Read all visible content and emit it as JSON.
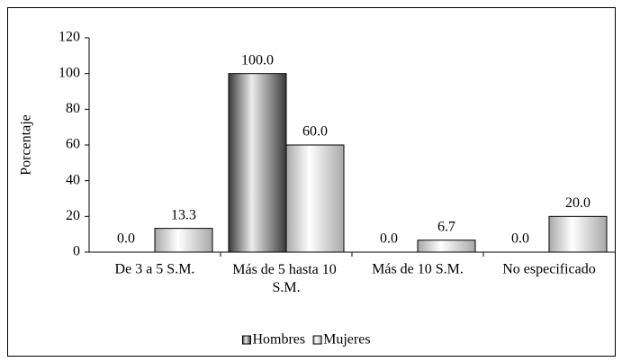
{
  "chart_data": {
    "type": "bar",
    "y_label": "Porcentaje",
    "categories": [
      "De 3 a 5 S.M.",
      "Más de 5 hasta 10 S.M.",
      "Más de 10 S.M.",
      "No especificado"
    ],
    "series": [
      {
        "name": "Hombres",
        "color": "#6e6e6e",
        "values": [
          0,
          100,
          0,
          0
        ],
        "value_labels": [
          "0.0",
          "100.0",
          "0.0",
          "0.0"
        ]
      },
      {
        "name": "Mujeres",
        "color": "#d4d4d4",
        "values": [
          13.3,
          60,
          6.7,
          20
        ],
        "value_labels": [
          "13.3",
          "60.0",
          "6.7",
          "20.0"
        ]
      }
    ],
    "ylim": [
      0,
      120
    ],
    "yticks": [
      0,
      20,
      40,
      60,
      80,
      100,
      120
    ],
    "grid": false,
    "legend": "bottom"
  }
}
